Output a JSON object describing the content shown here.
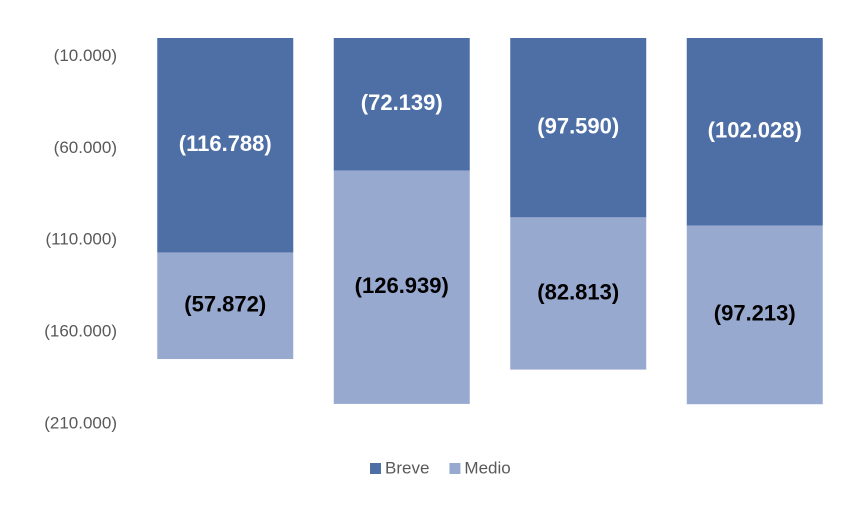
{
  "chart_data": {
    "type": "stacked_bar",
    "categories": [
      null,
      null,
      null,
      null
    ],
    "series": [
      {
        "name": "Breve",
        "color": "#4e6fa5",
        "label_color": "#ffffff",
        "values": [
          -116788,
          -72139,
          -97590,
          -102028
        ],
        "value_labels": [
          "(116.788)",
          "(72.139)",
          "(97.590)",
          "(102.028)"
        ]
      },
      {
        "name": "Medio",
        "color": "#98a9cf",
        "label_color": "#000000",
        "values": [
          -57872,
          -126939,
          -82813,
          -97213
        ],
        "value_labels": [
          "(57.872)",
          "(126.939)",
          "(82.813)",
          "(97.213)"
        ]
      }
    ],
    "ylim": [
      -210000,
      0
    ],
    "yticks": [
      {
        "value": -10000,
        "label": "(10.000)"
      },
      {
        "value": -60000,
        "label": "(60.000)"
      },
      {
        "value": -110000,
        "label": "(110.000)"
      },
      {
        "value": -160000,
        "label": "(160.000)"
      },
      {
        "value": -210000,
        "label": "(210.000)"
      }
    ],
    "grid": false,
    "legend": "bottom"
  }
}
